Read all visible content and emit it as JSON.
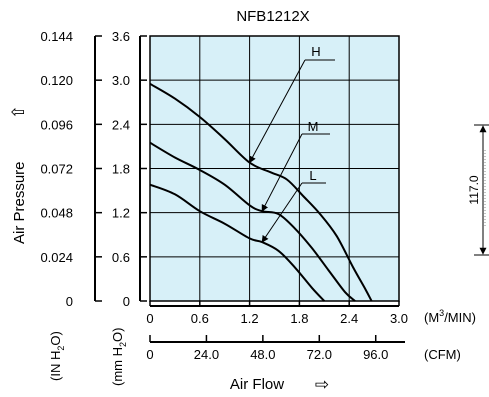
{
  "chart_data": {
    "type": "line",
    "title": "NFB1212X",
    "ylabel": "Air Pressure",
    "ylabel_arrow": "⇧",
    "xlabel": "Air Flow",
    "xlabel_arrow": "⇨",
    "grid": true,
    "plot_background": "#d7f0f8",
    "line_color": "#000000",
    "y_axis_mm": {
      "unit_label_parts": [
        "(mm H",
        "2",
        "O)"
      ],
      "ylim": [
        0,
        3.6
      ],
      "ticks": [
        "0",
        "0.6",
        "1.2",
        "1.8",
        "2.4",
        "3.0",
        "3.6"
      ]
    },
    "y_axis_in": {
      "unit_label_parts": [
        "(IN H",
        "2",
        "O)"
      ],
      "ylim": [
        0,
        0.144
      ],
      "ticks": [
        "0",
        "0.024",
        "0.048",
        "0.072",
        "0.096",
        "0.120",
        "0.144"
      ]
    },
    "x_axis_m3": {
      "unit_parts": [
        "(M",
        "3",
        "/MIN)"
      ],
      "xlim": [
        0,
        3.0
      ],
      "ticks": [
        "0",
        "0.6",
        "1.2",
        "1.8",
        "2.4",
        "3.0"
      ]
    },
    "x_axis_cfm": {
      "unit": "(CFM)",
      "xlim": [
        0,
        105.9
      ],
      "ticks": [
        "0",
        "24.0",
        "48.0",
        "72.0",
        "96.0"
      ],
      "tick_values": [
        0,
        24,
        48,
        72,
        96
      ]
    },
    "series": [
      {
        "name": "H",
        "x": [
          0,
          0.3,
          0.6,
          0.9,
          1.2,
          1.45,
          1.65,
          1.85,
          2.05,
          2.25,
          2.45,
          2.6,
          2.67
        ],
        "y": [
          2.95,
          2.75,
          2.5,
          2.2,
          1.88,
          1.75,
          1.65,
          1.42,
          1.18,
          0.88,
          0.45,
          0.15,
          0
        ]
      },
      {
        "name": "M",
        "x": [
          0,
          0.3,
          0.6,
          0.9,
          1.2,
          1.35,
          1.55,
          1.75,
          1.95,
          2.15,
          2.35,
          2.47
        ],
        "y": [
          2.15,
          1.95,
          1.78,
          1.58,
          1.3,
          1.22,
          1.18,
          0.98,
          0.72,
          0.42,
          0.12,
          0
        ]
      },
      {
        "name": "L",
        "x": [
          0,
          0.3,
          0.6,
          0.9,
          1.2,
          1.35,
          1.55,
          1.75,
          1.95,
          2.1
        ],
        "y": [
          1.58,
          1.45,
          1.22,
          1.05,
          0.85,
          0.8,
          0.68,
          0.45,
          0.18,
          0
        ]
      }
    ],
    "series_labels": [
      "H",
      "M",
      "L"
    ],
    "side_dimension": {
      "label": "117.0"
    }
  }
}
